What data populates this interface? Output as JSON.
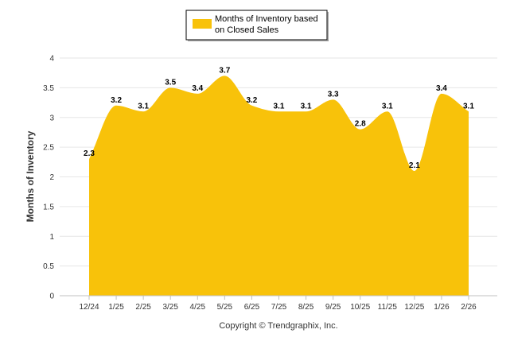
{
  "chart_data": {
    "type": "area",
    "categories": [
      "12/24",
      "1/25",
      "2/25",
      "3/25",
      "4/25",
      "5/25",
      "6/25",
      "7/25",
      "8/25",
      "9/25",
      "10/25",
      "11/25",
      "12/25",
      "1/26",
      "2/26"
    ],
    "series": [
      {
        "name": "Months of Inventory based on Closed Sales",
        "values": [
          2.3,
          3.2,
          3.1,
          3.5,
          3.4,
          3.7,
          3.2,
          3.1,
          3.1,
          3.3,
          2.8,
          3.1,
          2.1,
          3.4,
          3.1
        ],
        "labels": [
          "2.3",
          "3.2",
          "3.1",
          "3.5",
          "3.4",
          "3.7",
          "3.2",
          "3.1",
          "3.1",
          "3.3",
          "2.8",
          "3.1",
          "2.1",
          "3.4",
          "3.1"
        ],
        "color": "#F8C20A"
      }
    ],
    "legend_lines": [
      "Months of Inventory based",
      "on Closed Sales"
    ],
    "ylabel": "Months of Inventory",
    "ylim": [
      0,
      4
    ],
    "yticks": [
      "0",
      "0.5",
      "1",
      "1.5",
      "2",
      "2.5",
      "3",
      "3.5",
      "4"
    ],
    "grid": true,
    "legend_position": "top-center"
  },
  "footer": {
    "copyright": "Copyright © Trendgraphix, Inc."
  }
}
